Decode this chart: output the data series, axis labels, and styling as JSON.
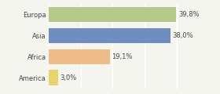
{
  "categories": [
    "Europa",
    "Asia",
    "Africa",
    "America"
  ],
  "values": [
    39.8,
    38.0,
    19.1,
    3.0
  ],
  "labels": [
    "39,8%",
    "38,0%",
    "19,1%",
    "3,0%"
  ],
  "bar_colors": [
    "#b5c98a",
    "#6e8ebf",
    "#f0bc88",
    "#e8d56a"
  ],
  "background_color": "#f5f5f0",
  "xlim": [
    0,
    52
  ],
  "bar_height": 0.72,
  "label_fontsize": 6.0,
  "cat_fontsize": 6.0,
  "grid_color": "#ffffff",
  "grid_linewidth": 1.0
}
